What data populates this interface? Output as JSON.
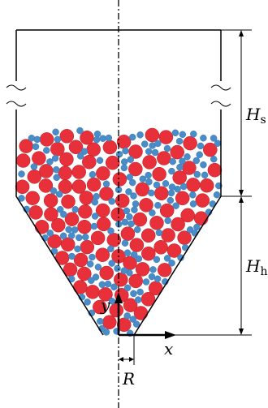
{
  "labels": {
    "hs": {
      "main": "H",
      "sub": "s"
    },
    "hh": {
      "main": "H",
      "sub": "h"
    },
    "y": "y",
    "x": "x",
    "r": "R"
  }
}
